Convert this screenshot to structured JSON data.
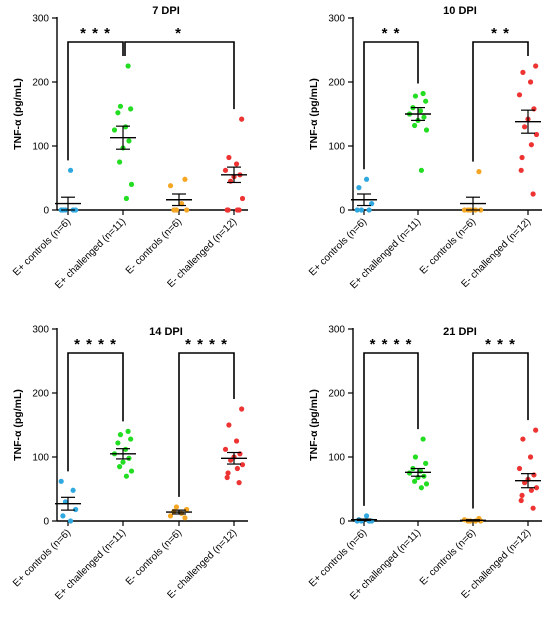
{
  "chart_data": [
    {
      "type": "scatter",
      "title": "7 DPI",
      "ylabel": "TNF-α (pg/mL)",
      "ylim": [
        0,
        300
      ],
      "yticks": [
        0,
        100,
        200,
        300
      ],
      "categories": [
        "E+ controls (n=6)",
        "E+ challenged (n=11)",
        "E- controls (n=6)",
        "E- challenged (n=12)"
      ],
      "series": [
        {
          "color": "#2fa8e0",
          "points": [
            0,
            0,
            0,
            0,
            0,
            62
          ],
          "mean": 10,
          "sem": 10
        },
        {
          "color": "#22dd22",
          "points": [
            225,
            162,
            158,
            152,
            130,
            125,
            108,
            97,
            75,
            40,
            18
          ],
          "mean": 113,
          "sem": 18
        },
        {
          "color": "#f5a623",
          "points": [
            0,
            0,
            0,
            10,
            38,
            48
          ],
          "mean": 16,
          "sem": 9
        },
        {
          "color": "#ee3333",
          "points": [
            142,
            82,
            72,
            62,
            55,
            52,
            45,
            18,
            0,
            0,
            0,
            0
          ],
          "mean": 55,
          "sem": 12
        }
      ],
      "comparisons": [
        {
          "from": 0,
          "to": 1,
          "label": "* * *"
        },
        {
          "from": 1,
          "to": 3,
          "label": "*"
        }
      ]
    },
    {
      "type": "scatter",
      "title": "10 DPI",
      "ylabel": "TNF-α (pg/mL)",
      "ylim": [
        0,
        300
      ],
      "yticks": [
        0,
        100,
        200,
        300
      ],
      "categories": [
        "E+ controls (n=6)",
        "E+ challenged (n=11)",
        "E- controls (n=6)",
        "E- challenged (n=12)"
      ],
      "series": [
        {
          "color": "#2fa8e0",
          "points": [
            0,
            0,
            0,
            10,
            35,
            48
          ],
          "mean": 16,
          "sem": 9
        },
        {
          "color": "#22dd22",
          "points": [
            182,
            178,
            170,
            160,
            155,
            150,
            145,
            140,
            132,
            125,
            62
          ],
          "mean": 150,
          "sem": 10
        },
        {
          "color": "#f5a623",
          "points": [
            0,
            0,
            0,
            0,
            0,
            60
          ],
          "mean": 10,
          "sem": 10
        },
        {
          "color": "#ee3333",
          "points": [
            225,
            215,
            200,
            180,
            158,
            142,
            130,
            118,
            102,
            82,
            62,
            25
          ],
          "mean": 138,
          "sem": 18
        }
      ],
      "comparisons": [
        {
          "from": 0,
          "to": 1,
          "label": "* *"
        },
        {
          "from": 2,
          "to": 3,
          "label": "* *"
        }
      ]
    },
    {
      "type": "scatter",
      "title": "14 DPI",
      "ylabel": "TNF-α (pg/mL)",
      "ylim": [
        0,
        300
      ],
      "yticks": [
        0,
        100,
        200,
        300
      ],
      "categories": [
        "E+ controls (n=6)",
        "E+ challenged (n=11)",
        "E- controls (n=6)",
        "E- challenged (n=12)"
      ],
      "series": [
        {
          "color": "#2fa8e0",
          "points": [
            62,
            48,
            30,
            18,
            8,
            0
          ],
          "mean": 27,
          "sem": 10
        },
        {
          "color": "#22dd22",
          "points": [
            140,
            135,
            128,
            122,
            112,
            105,
            98,
            92,
            85,
            78,
            70
          ],
          "mean": 105,
          "sem": 8
        },
        {
          "color": "#f5a623",
          "points": [
            22,
            18,
            15,
            12,
            8,
            5
          ],
          "mean": 14,
          "sem": 3
        },
        {
          "color": "#ee3333",
          "points": [
            175,
            150,
            125,
            112,
            105,
            100,
            95,
            88,
            82,
            75,
            68,
            60
          ],
          "mean": 98,
          "sem": 9
        }
      ],
      "comparisons": [
        {
          "from": 0,
          "to": 1,
          "label": "* * * *"
        },
        {
          "from": 2,
          "to": 3,
          "label": "* * * *"
        }
      ]
    },
    {
      "type": "scatter",
      "title": "21 DPI",
      "ylabel": "TNF-α (pg/mL)",
      "ylim": [
        0,
        300
      ],
      "yticks": [
        0,
        100,
        200,
        300
      ],
      "categories": [
        "E+ controls (n=6)",
        "E+ challenged (n=11)",
        "E- controls (n=6)",
        "E- challenged (n=12)"
      ],
      "series": [
        {
          "color": "#2fa8e0",
          "points": [
            0,
            0,
            0,
            0,
            2,
            8
          ],
          "mean": 2,
          "sem": 1
        },
        {
          "color": "#22dd22",
          "points": [
            128,
            100,
            90,
            82,
            78,
            75,
            70,
            68,
            62,
            58,
            52
          ],
          "mean": 76,
          "sem": 6
        },
        {
          "color": "#f5a623",
          "points": [
            0,
            0,
            0,
            0,
            2,
            4
          ],
          "mean": 1,
          "sem": 1
        },
        {
          "color": "#ee3333",
          "points": [
            142,
            128,
            100,
            82,
            72,
            65,
            60,
            52,
            48,
            40,
            32,
            20
          ],
          "mean": 63,
          "sem": 11
        }
      ],
      "comparisons": [
        {
          "from": 0,
          "to": 1,
          "label": "* * * *"
        },
        {
          "from": 2,
          "to": 3,
          "label": "* * *"
        }
      ]
    }
  ]
}
